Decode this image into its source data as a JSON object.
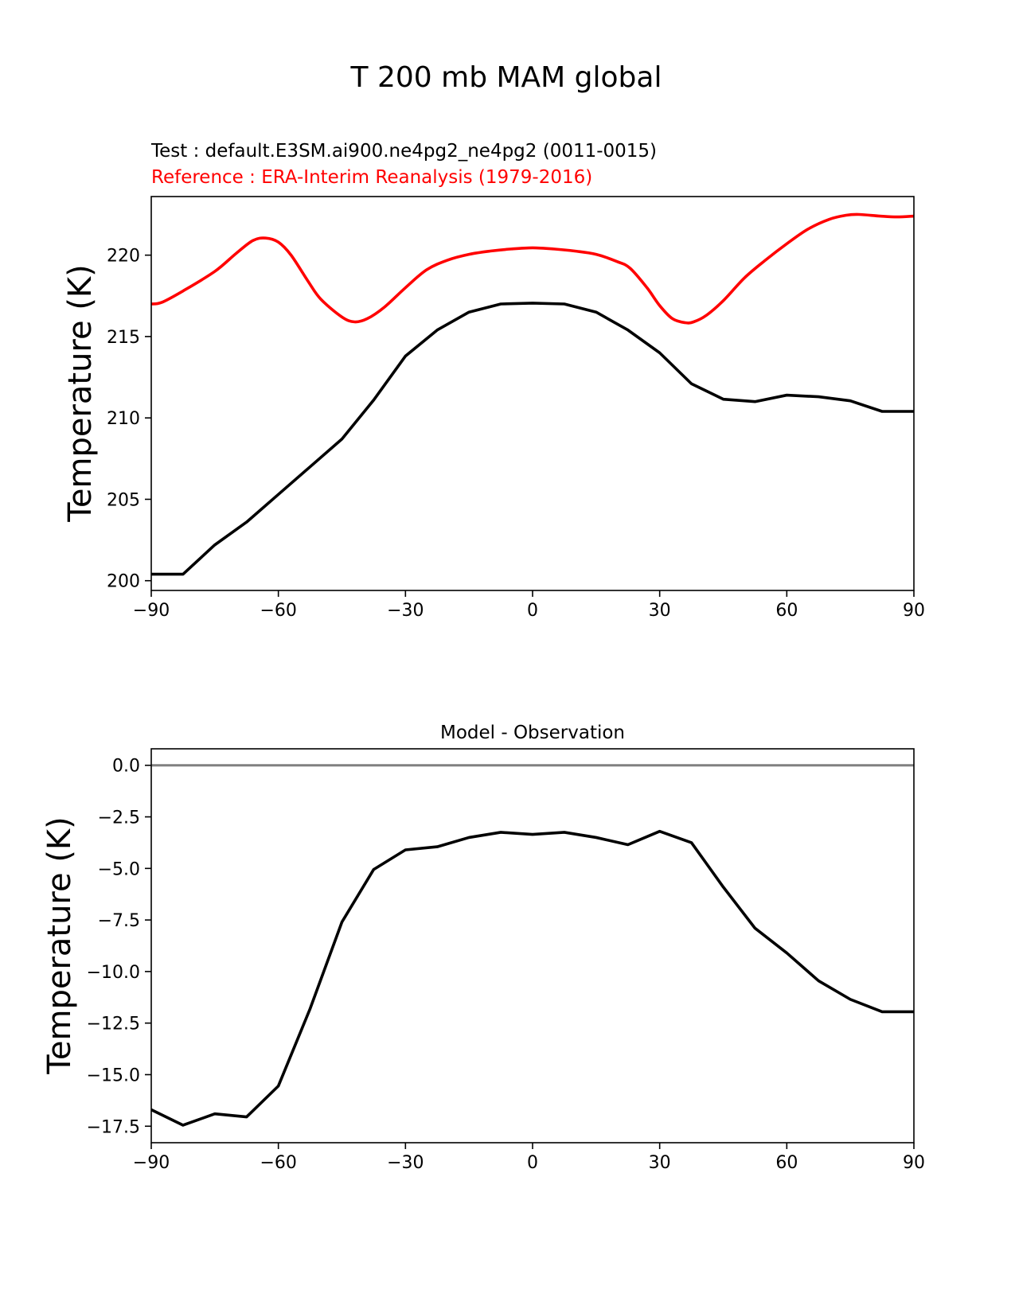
{
  "figure": {
    "title": "T 200 mb MAM global",
    "colors": {
      "test": "#000000",
      "reference": "#ff0000",
      "zero_line": "#808080"
    }
  },
  "chart_data": [
    {
      "type": "line",
      "title_test": "Test : default.E3SM.ai900.ne4pg2_ne4pg2 (0011-0015)",
      "title_reference": "Reference : ERA-Interim Reanalysis (1979-2016)",
      "xlabel": "",
      "ylabel": "Temperature (K)",
      "xlim": [
        -90,
        90
      ],
      "ylim": [
        199.4,
        223.6
      ],
      "xticks": [
        -90,
        -60,
        -30,
        0,
        30,
        60,
        90
      ],
      "xtick_labels": [
        "−90",
        "−60",
        "−30",
        "0",
        "30",
        "60",
        "90"
      ],
      "yticks": [
        200,
        205,
        210,
        215,
        220
      ],
      "ytick_labels": [
        "200",
        "205",
        "210",
        "215",
        "220"
      ],
      "series": [
        {
          "name": "test",
          "color": "#000000",
          "x": [
            -90,
            -82.5,
            -75,
            -67.5,
            -60,
            -52.5,
            -45,
            -37.5,
            -30,
            -22.5,
            -15,
            -7.5,
            0,
            7.5,
            15,
            22.5,
            30,
            37.5,
            45,
            52.5,
            60,
            67.5,
            75,
            82.5,
            90
          ],
          "y": [
            200.4,
            200.4,
            202.2,
            203.6,
            205.3,
            207.0,
            208.7,
            211.1,
            213.8,
            215.4,
            216.5,
            217.0,
            217.05,
            217.0,
            216.5,
            215.4,
            214.0,
            212.1,
            211.15,
            211.0,
            211.4,
            211.3,
            211.05,
            210.4,
            210.4
          ]
        },
        {
          "name": "reference",
          "color": "#ff0000",
          "smooth": true,
          "x": [
            -90,
            -87.5,
            -82.5,
            -75,
            -70,
            -66,
            -63,
            -60,
            -57,
            -53,
            -50,
            -45,
            -42,
            -39,
            -35,
            -30,
            -25,
            -20,
            -15,
            -10,
            -5,
            0,
            5,
            10,
            15,
            20,
            23,
            27,
            30,
            33,
            36,
            38,
            41,
            45,
            50,
            55,
            60,
            65,
            70,
            74,
            77,
            82,
            86,
            90
          ],
          "y": [
            217.0,
            217.1,
            217.8,
            219.0,
            220.1,
            220.9,
            221.05,
            220.8,
            220.0,
            218.4,
            217.3,
            216.2,
            215.9,
            216.1,
            216.8,
            218.0,
            219.1,
            219.7,
            220.05,
            220.25,
            220.38,
            220.45,
            220.38,
            220.25,
            220.05,
            219.6,
            219.2,
            218.0,
            216.9,
            216.1,
            215.85,
            215.9,
            216.3,
            217.2,
            218.6,
            219.7,
            220.7,
            221.6,
            222.2,
            222.45,
            222.5,
            222.4,
            222.35,
            222.4
          ]
        }
      ]
    },
    {
      "type": "line",
      "title": "Model - Observation",
      "xlabel": "",
      "ylabel": "Temperature (K)",
      "xlim": [
        -90,
        90
      ],
      "ylim": [
        -18.3,
        0.8
      ],
      "xticks": [
        -90,
        -60,
        -30,
        0,
        30,
        60,
        90
      ],
      "xtick_labels": [
        "−90",
        "−60",
        "−30",
        "0",
        "30",
        "60",
        "90"
      ],
      "yticks": [
        0.0,
        -2.5,
        -5.0,
        -7.5,
        -10.0,
        -12.5,
        -15.0,
        -17.5
      ],
      "ytick_labels": [
        "0.0",
        "−2.5",
        "−5.0",
        "−7.5",
        "−10.0",
        "−12.5",
        "−15.0",
        "−17.5"
      ],
      "zero_line": 0.0,
      "series": [
        {
          "name": "difference",
          "color": "#000000",
          "x": [
            -90,
            -82.5,
            -75,
            -67.5,
            -60,
            -52.5,
            -45,
            -37.5,
            -30,
            -22.5,
            -15,
            -7.5,
            0,
            7.5,
            15,
            22.5,
            30,
            37.5,
            45,
            52.5,
            60,
            67.5,
            75,
            82.5,
            90
          ],
          "y": [
            -16.7,
            -17.45,
            -16.9,
            -17.05,
            -15.55,
            -11.8,
            -7.6,
            -5.05,
            -4.1,
            -3.95,
            -3.5,
            -3.25,
            -3.35,
            -3.25,
            -3.5,
            -3.85,
            -3.2,
            -3.75,
            -5.9,
            -7.9,
            -9.1,
            -10.45,
            -11.35,
            -11.95,
            -11.95
          ]
        }
      ]
    }
  ]
}
